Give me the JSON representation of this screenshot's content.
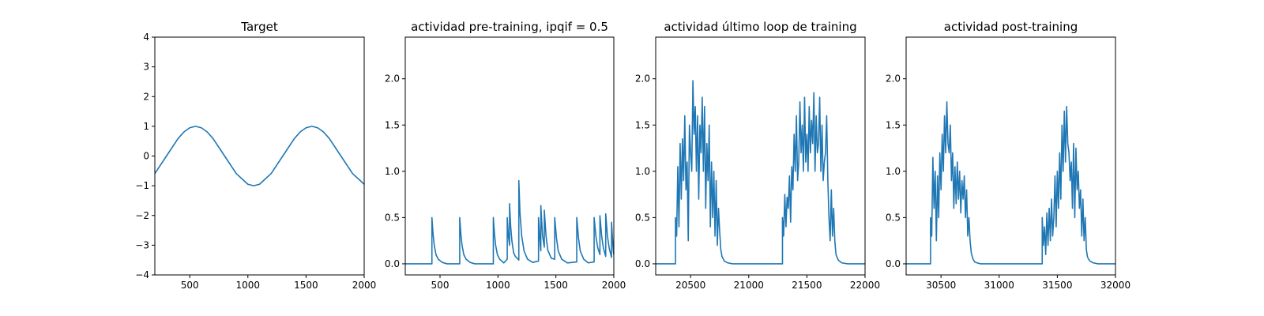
{
  "colors": {
    "series": "#1f77b4"
  },
  "chart_data": [
    {
      "type": "line",
      "title": "Target",
      "xlabel": "",
      "ylabel": "",
      "xlim": [
        200,
        2000
      ],
      "ylim": [
        -4,
        4
      ],
      "xticks": [
        500,
        1000,
        1500,
        2000
      ],
      "xtick_labels": [
        "500",
        "1000",
        "1500",
        "2000"
      ],
      "yticks": [
        -4,
        -3,
        -2,
        -1,
        0,
        1,
        2,
        3,
        4
      ],
      "ytick_labels": [
        "−4",
        "−3",
        "−2",
        "−1",
        "0",
        "1",
        "2",
        "3",
        "4"
      ],
      "grid": false,
      "series": [
        {
          "x": [
            200,
            300,
            400,
            450,
            500,
            550,
            600,
            650,
            700,
            800,
            900,
            1000,
            1050,
            1100,
            1200,
            1300,
            1400,
            1450,
            1500,
            1550,
            1600,
            1650,
            1700,
            1800,
            1900,
            2000
          ],
          "y": [
            -0.59,
            0.0,
            0.59,
            0.81,
            0.95,
            1.0,
            0.95,
            0.81,
            0.59,
            0.0,
            -0.59,
            -0.95,
            -1.0,
            -0.95,
            -0.59,
            0.0,
            0.59,
            0.81,
            0.95,
            1.0,
            0.95,
            0.81,
            0.59,
            0.0,
            -0.59,
            -0.95
          ]
        }
      ]
    },
    {
      "type": "line",
      "title": "actividad pre-training, ipqif = 0.5",
      "xlabel": "",
      "ylabel": "",
      "xlim": [
        200,
        2000
      ],
      "ylim": [
        -0.12,
        2.45
      ],
      "xticks": [
        500,
        1000,
        1500,
        2000
      ],
      "xtick_labels": [
        "500",
        "1000",
        "1500",
        "2000"
      ],
      "yticks": [
        0.0,
        0.5,
        1.0,
        1.5,
        2.0
      ],
      "ytick_labels": [
        "0.0",
        "0.5",
        "1.0",
        "1.5",
        "2.0"
      ],
      "grid": false,
      "series": [
        {
          "x": [
            200,
            430,
            430,
            440,
            450,
            465,
            485,
            520,
            560,
            670,
            670,
            680,
            690,
            705,
            725,
            760,
            800,
            960,
            960,
            970,
            980,
            995,
            1015,
            1050,
            1080,
            1080,
            1090,
            1100,
            1100,
            1110,
            1120,
            1135,
            1150,
            1180,
            1180,
            1190,
            1205,
            1225,
            1255,
            1300,
            1350,
            1350,
            1365,
            1370,
            1370,
            1385,
            1400,
            1400,
            1415,
            1430,
            1460,
            1490,
            1490,
            1505,
            1520,
            1550,
            1600,
            1680,
            1680,
            1695,
            1710,
            1740,
            1780,
            1830,
            1830,
            1845,
            1860,
            1880,
            1880,
            1895,
            1910,
            1930,
            1930,
            1945,
            1960,
            1980,
            1980,
            1995,
            2000
          ],
          "y": [
            0,
            0,
            0.5,
            0.32,
            0.2,
            0.1,
            0.05,
            0.015,
            0,
            0,
            0.5,
            0.32,
            0.2,
            0.1,
            0.05,
            0.015,
            0,
            0,
            0.5,
            0.32,
            0.2,
            0.1,
            0.05,
            0.01,
            0.05,
            0.5,
            0.3,
            0.2,
            0.65,
            0.4,
            0.25,
            0.12,
            0.08,
            0.04,
            0.9,
            0.55,
            0.3,
            0.14,
            0.05,
            0.015,
            0.03,
            0.5,
            0.2,
            0.14,
            0.63,
            0.3,
            0.18,
            0.58,
            0.3,
            0.15,
            0.06,
            0.05,
            0.5,
            0.28,
            0.14,
            0.05,
            0.01,
            0.02,
            0.5,
            0.28,
            0.14,
            0.05,
            0.01,
            0.02,
            0.5,
            0.3,
            0.18,
            0.1,
            0.52,
            0.3,
            0.17,
            0.08,
            0.54,
            0.3,
            0.17,
            0.07,
            0.45,
            0.15,
            0.1
          ]
        }
      ]
    },
    {
      "type": "line",
      "title": "actividad último loop de training",
      "xlabel": "",
      "ylabel": "",
      "xlim": [
        20200,
        22000
      ],
      "ylim": [
        -0.12,
        2.45
      ],
      "xticks": [
        20500,
        21000,
        21500,
        22000
      ],
      "xtick_labels": [
        "20500",
        "21000",
        "21500",
        "22000"
      ],
      "yticks": [
        0.0,
        0.5,
        1.0,
        1.5,
        2.0
      ],
      "ytick_labels": [
        "0.0",
        "0.5",
        "1.0",
        "1.5",
        "2.0"
      ],
      "grid": false,
      "series": [
        {
          "x": [
            20200,
            20370,
            20370,
            20380,
            20390,
            20400,
            20410,
            20420,
            20430,
            20440,
            20450,
            20460,
            20470,
            20480,
            20490,
            20500,
            20510,
            20520,
            20530,
            20540,
            20550,
            20560,
            20570,
            20580,
            20590,
            20600,
            20610,
            20620,
            20630,
            20640,
            20650,
            20660,
            20670,
            20680,
            20690,
            20700,
            20710,
            20720,
            20730,
            20740,
            20750,
            20760,
            20770,
            20790,
            20820,
            20860,
            20900,
            21290,
            21290,
            21300,
            21310,
            21320,
            21330,
            21340,
            21350,
            21360,
            21370,
            21380,
            21390,
            21400,
            21410,
            21420,
            21430,
            21440,
            21450,
            21460,
            21470,
            21480,
            21490,
            21500,
            21510,
            21520,
            21530,
            21540,
            21550,
            21560,
            21570,
            21580,
            21590,
            21600,
            21610,
            21620,
            21630,
            21640,
            21650,
            21660,
            21670,
            21680,
            21690,
            21700,
            21710,
            21720,
            21730,
            21740,
            21750,
            21770,
            21800,
            21850,
            22000
          ],
          "y": [
            0,
            0,
            0.5,
            0.3,
            1.05,
            0.4,
            1.3,
            0.7,
            1.35,
            0.9,
            1.6,
            0.8,
            1.1,
            0.25,
            1.5,
            1.2,
            1.0,
            1.98,
            1.4,
            1.7,
            1.0,
            1.6,
            0.7,
            1.5,
            1.2,
            1.8,
            1.0,
            1.7,
            0.6,
            1.3,
            0.9,
            1.5,
            0.4,
            1.1,
            0.5,
            1.0,
            0.3,
            0.9,
            0.2,
            0.6,
            0.35,
            0.15,
            0.08,
            0.03,
            0.01,
            0,
            0,
            0,
            0.5,
            0.3,
            0.75,
            0.4,
            0.72,
            0.6,
            0.95,
            0.45,
            1.05,
            0.8,
            1.4,
            1.0,
            1.6,
            0.9,
            1.1,
            1.75,
            1.2,
            1.5,
            1.0,
            1.8,
            1.1,
            1.4,
            1.0,
            1.7,
            1.2,
            1.55,
            1.3,
            1.85,
            1.0,
            1.6,
            1.2,
            1.3,
            1.8,
            1.0,
            1.5,
            0.9,
            1.1,
            1.2,
            1.6,
            0.9,
            0.5,
            0.25,
            0.8,
            0.3,
            0.6,
            0.25,
            0.1,
            0.04,
            0.01,
            0,
            0
          ]
        }
      ]
    },
    {
      "type": "line",
      "title": "actividad post-training",
      "xlabel": "",
      "ylabel": "",
      "xlim": [
        30200,
        32000
      ],
      "ylim": [
        -0.12,
        2.45
      ],
      "xticks": [
        30500,
        31000,
        31500,
        32000
      ],
      "xtick_labels": [
        "30500",
        "31000",
        "31500",
        "32000"
      ],
      "yticks": [
        0.0,
        0.5,
        1.0,
        1.5,
        2.0
      ],
      "ytick_labels": [
        "0.0",
        "0.5",
        "1.0",
        "1.5",
        "2.0"
      ],
      "grid": false,
      "series": [
        {
          "x": [
            30200,
            30410,
            30410,
            30420,
            30430,
            30440,
            30450,
            30460,
            30470,
            30480,
            30490,
            30500,
            30510,
            30520,
            30530,
            30540,
            30550,
            30560,
            30570,
            30580,
            30590,
            30600,
            30610,
            30620,
            30630,
            30640,
            30650,
            30660,
            30670,
            30680,
            30690,
            30700,
            30710,
            30720,
            30730,
            30740,
            30750,
            30760,
            30770,
            30780,
            30790,
            30810,
            30840,
            30880,
            30930,
            31370,
            31370,
            31380,
            31390,
            31400,
            31410,
            31420,
            31430,
            31440,
            31450,
            31460,
            31470,
            31480,
            31490,
            31500,
            31510,
            31520,
            31530,
            31540,
            31550,
            31560,
            31570,
            31580,
            31590,
            31600,
            31610,
            31620,
            31630,
            31640,
            31650,
            31660,
            31670,
            31680,
            31690,
            31700,
            31710,
            31720,
            31730,
            31740,
            31750,
            31760,
            31780,
            31810,
            31850,
            32000
          ],
          "y": [
            0,
            0,
            0.5,
            0.3,
            1.15,
            0.6,
            1.0,
            0.25,
            0.95,
            0.5,
            1.2,
            0.8,
            1.4,
            1.0,
            1.6,
            1.2,
            1.75,
            1.3,
            1.2,
            1.5,
            0.9,
            1.2,
            0.6,
            1.05,
            0.65,
            1.1,
            0.7,
            1.0,
            0.55,
            0.9,
            0.7,
            0.95,
            0.5,
            0.8,
            0.3,
            0.5,
            0.25,
            0.12,
            0.07,
            0.04,
            0.02,
            0.01,
            0,
            0,
            0,
            0,
            0.5,
            0.2,
            0.4,
            0.1,
            0.55,
            0.2,
            0.6,
            0.25,
            0.7,
            0.3,
            0.5,
            0.95,
            0.4,
            1.0,
            0.6,
            1.2,
            0.7,
            1.5,
            1.0,
            1.65,
            1.1,
            1.7,
            1.3,
            1.2,
            0.9,
            1.1,
            0.6,
            1.3,
            0.5,
            1.25,
            0.8,
            1.0,
            0.6,
            0.8,
            0.3,
            0.7,
            0.25,
            0.5,
            0.15,
            0.07,
            0.03,
            0.01,
            0,
            0
          ]
        }
      ]
    }
  ]
}
